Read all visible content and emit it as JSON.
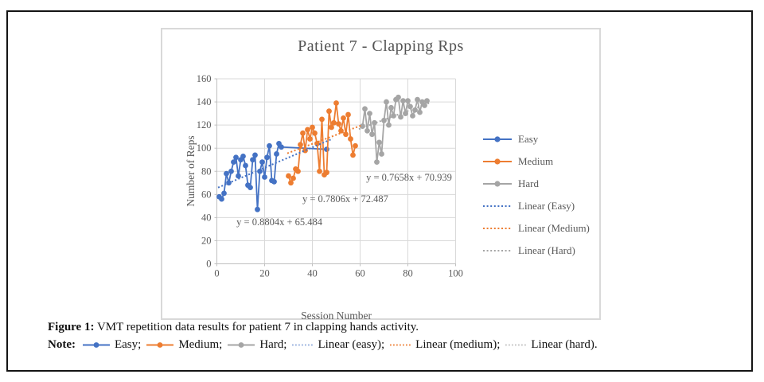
{
  "chart_data": {
    "type": "line",
    "title": "Patient 7 - Clapping Rps",
    "xlabel": "Session Number",
    "ylabel": "Number of Reps",
    "xlim": [
      0,
      100
    ],
    "ylim": [
      0,
      160
    ],
    "xticks": [
      0,
      20,
      40,
      60,
      80,
      100
    ],
    "yticks": [
      0,
      20,
      40,
      60,
      80,
      100,
      120,
      140,
      160
    ],
    "grid": true,
    "legend_position": "right",
    "series": [
      {
        "name": "Easy",
        "color": "#4472C4",
        "x": [
          1,
          2,
          3,
          4,
          5,
          6,
          7,
          8,
          9,
          10,
          11,
          12,
          13,
          14,
          15,
          16,
          17,
          18,
          19,
          20,
          21,
          22,
          23,
          24,
          25,
          26,
          27,
          46
        ],
        "y": [
          58,
          56,
          61,
          78,
          70,
          80,
          88,
          92,
          76,
          90,
          93,
          85,
          68,
          66,
          90,
          94,
          47,
          80,
          88,
          75,
          92,
          102,
          72,
          71,
          95,
          104,
          101,
          99
        ]
      },
      {
        "name": "Medium",
        "color": "#ED7D31",
        "x": [
          30,
          31,
          32,
          33,
          34,
          35,
          36,
          37,
          38,
          39,
          40,
          41,
          42,
          43,
          44,
          45,
          46,
          47,
          48,
          49,
          50,
          51,
          52,
          53,
          54,
          55,
          56,
          57,
          58
        ],
        "y": [
          76,
          70,
          74,
          82,
          80,
          103,
          113,
          98,
          116,
          108,
          118,
          113,
          104,
          80,
          125,
          77,
          79,
          132,
          118,
          122,
          139,
          121,
          115,
          126,
          112,
          129,
          108,
          94,
          102
        ]
      },
      {
        "name": "Hard",
        "color": "#A5A5A5",
        "x": [
          61,
          62,
          63,
          64,
          65,
          66,
          67,
          68,
          69,
          70,
          71,
          72,
          73,
          74,
          75,
          76,
          77,
          78,
          79,
          80,
          81,
          82,
          83,
          84,
          85,
          86,
          87,
          88
        ],
        "y": [
          119,
          134,
          115,
          130,
          112,
          122,
          88,
          105,
          95,
          124,
          140,
          120,
          135,
          128,
          142,
          144,
          127,
          141,
          130,
          141,
          136,
          128,
          133,
          142,
          131,
          140,
          137,
          141
        ]
      }
    ],
    "trendlines": [
      {
        "name": "Linear (Easy)",
        "color": "#4472C4",
        "slope": 0.8804,
        "intercept": 65.484,
        "x_range": [
          0.5,
          48.5
        ],
        "equation": "y = 0.8804x + 65.484",
        "eq_pos": {
          "x": 26.2,
          "y": 33.4
        }
      },
      {
        "name": "Linear (Medium)",
        "color": "#ED7D31",
        "slope": 0.7806,
        "intercept": 72.487,
        "x_range": [
          29.5,
          60.5
        ],
        "equation": "y = 0.7806x + 72.487",
        "eq_pos": {
          "x": 53.8,
          "y": 53.3
        }
      },
      {
        "name": "Linear (Hard)",
        "color": "#A5A5A5",
        "slope": 0.7658,
        "intercept": 70.939,
        "x_range": [
          59.5,
          89.5
        ],
        "equation": "y = 0.7658x + 70.939",
        "eq_pos": {
          "x": 80.5,
          "y": 71.9
        }
      }
    ]
  },
  "legend": {
    "items": [
      {
        "label": "Easy",
        "type": "solid",
        "color": "#4472C4"
      },
      {
        "label": "Medium",
        "type": "solid",
        "color": "#ED7D31"
      },
      {
        "label": "Hard",
        "type": "solid",
        "color": "#A5A5A5"
      },
      {
        "label": "Linear  (Easy)",
        "type": "dotted",
        "color": "#4472C4"
      },
      {
        "label": "Linear  (Medium)",
        "type": "dotted",
        "color": "#ED7D31"
      },
      {
        "label": "Linear  (Hard)",
        "type": "dotted",
        "color": "#A5A5A5"
      }
    ]
  },
  "caption": {
    "label": "Figure 1:",
    "text": " VMT repetition data results for patient 7 in clapping hands activity."
  },
  "note": {
    "label": "Note:",
    "items": [
      {
        "label": "Easy;",
        "type": "solid",
        "color": "#4472C4"
      },
      {
        "label": "Medium;",
        "type": "solid",
        "color": "#ED7D31"
      },
      {
        "label": "Hard;",
        "type": "solid",
        "color": "#A5A5A5"
      },
      {
        "label": "Linear (easy);",
        "type": "dotted",
        "color": "#8EA9DB"
      },
      {
        "label": "Linear (medium);",
        "type": "dotted",
        "color": "#ED7D31"
      },
      {
        "label": "Linear (hard).",
        "type": "dotted",
        "color": "#BFBFBF"
      }
    ]
  },
  "colors": {
    "easy": "#4472C4",
    "medium": "#ED7D31",
    "hard": "#A5A5A5",
    "gridline": "#D9D9D9",
    "axis": "#C0C0C0",
    "text": "#595959"
  }
}
